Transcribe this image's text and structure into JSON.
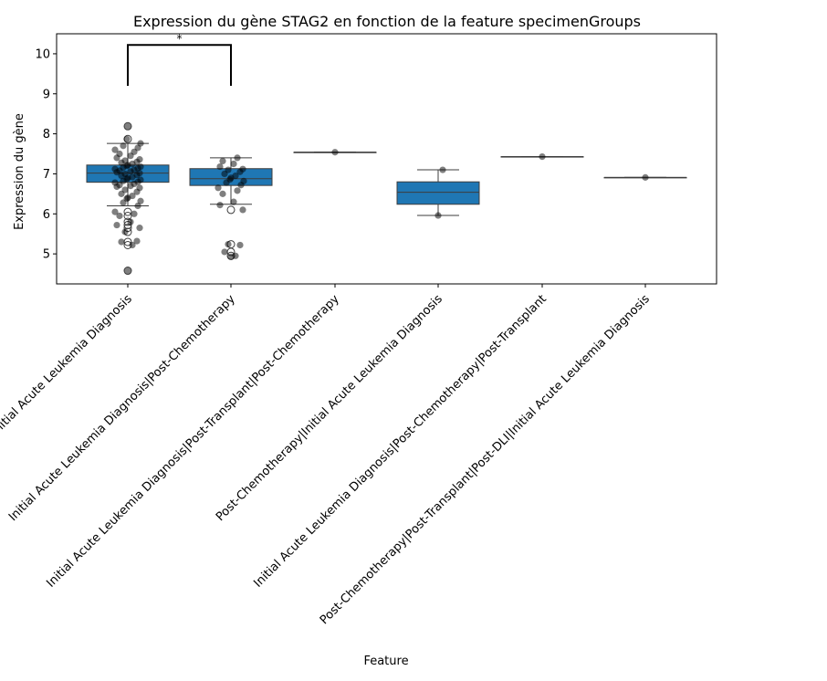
{
  "chart_data": {
    "type": "box",
    "title": "Expression du gène STAG2 en fonction de la feature specimenGroups",
    "xlabel": "Feature",
    "ylabel": "Expression du gène",
    "ylim": [
      4.25,
      10.5
    ],
    "yticks": [
      5,
      6,
      7,
      8,
      9,
      10
    ],
    "grid": false,
    "box_color": "#1f77b4",
    "categories": [
      "Initial Acute Leukemia Diagnosis",
      "Initial Acute Leukemia Diagnosis|Post-Chemotherapy",
      "Initial Acute Leukemia Diagnosis|Post-Transplant|Post-Chemotherapy",
      "Post-Chemotherapy|Initial Acute Leukemia Diagnosis",
      "Initial Acute Leukemia Diagnosis|Post-Chemotherapy|Post-Transplant",
      "Post-Chemotherapy|Post-Transplant|Post-DLI|Initial Acute Leukemia Diagnosis"
    ],
    "boxes": [
      {
        "q1": 6.79,
        "median": 7.02,
        "q3": 7.22,
        "whisker_low": 6.2,
        "whisker_high": 7.76,
        "outliers": [
          4.58,
          5.22,
          5.3,
          5.55,
          5.65,
          5.72,
          5.8,
          5.95,
          6.05,
          7.87,
          8.19
        ]
      },
      {
        "q1": 6.71,
        "median": 6.88,
        "q3": 7.13,
        "whisker_low": 6.24,
        "whisker_high": 7.4,
        "outliers": [
          4.95,
          5.05,
          5.24,
          6.1
        ]
      },
      {
        "q1": 7.54,
        "median": 7.54,
        "q3": 7.54,
        "whisker_low": 7.54,
        "whisker_high": 7.54,
        "outliers": []
      },
      {
        "q1": 6.24,
        "median": 6.54,
        "q3": 6.8,
        "whisker_low": 5.96,
        "whisker_high": 7.1,
        "outliers": []
      },
      {
        "q1": 7.43,
        "median": 7.43,
        "q3": 7.43,
        "whisker_low": 7.43,
        "whisker_high": 7.43,
        "outliers": []
      },
      {
        "q1": 6.91,
        "median": 6.91,
        "q3": 6.91,
        "whisker_low": 6.91,
        "whisker_high": 6.91,
        "outliers": []
      }
    ],
    "points": [
      [
        4.58,
        5.22,
        5.3,
        5.32,
        5.55,
        5.65,
        5.72,
        5.8,
        5.95,
        6.0,
        6.05,
        6.2,
        6.28,
        6.32,
        6.38,
        6.4,
        6.45,
        6.5,
        6.55,
        6.6,
        6.65,
        6.68,
        6.7,
        6.72,
        6.75,
        6.78,
        6.8,
        6.82,
        6.85,
        6.87,
        6.9,
        6.92,
        6.95,
        6.97,
        7.0,
        7.02,
        7.04,
        7.06,
        7.08,
        7.1,
        7.12,
        7.14,
        7.16,
        7.18,
        7.2,
        7.22,
        7.25,
        7.28,
        7.3,
        7.33,
        7.36,
        7.4,
        7.45,
        7.5,
        7.55,
        7.6,
        7.65,
        7.7,
        7.76,
        7.87,
        8.19
      ],
      [
        4.93,
        4.95,
        5.05,
        5.22,
        5.24,
        6.1,
        6.22,
        6.3,
        6.5,
        6.58,
        6.65,
        6.72,
        6.78,
        6.82,
        6.86,
        6.9,
        6.95,
        7.0,
        7.05,
        7.1,
        7.12,
        7.18,
        7.25,
        7.32,
        7.4
      ],
      [
        7.54
      ],
      [
        5.96,
        7.1
      ],
      [
        7.43
      ],
      [
        6.91
      ]
    ],
    "annotations": [
      {
        "type": "significance",
        "from_category": 0,
        "to_category": 1,
        "y_low": 9.2,
        "y_high": 10.22,
        "label": "*"
      }
    ]
  }
}
